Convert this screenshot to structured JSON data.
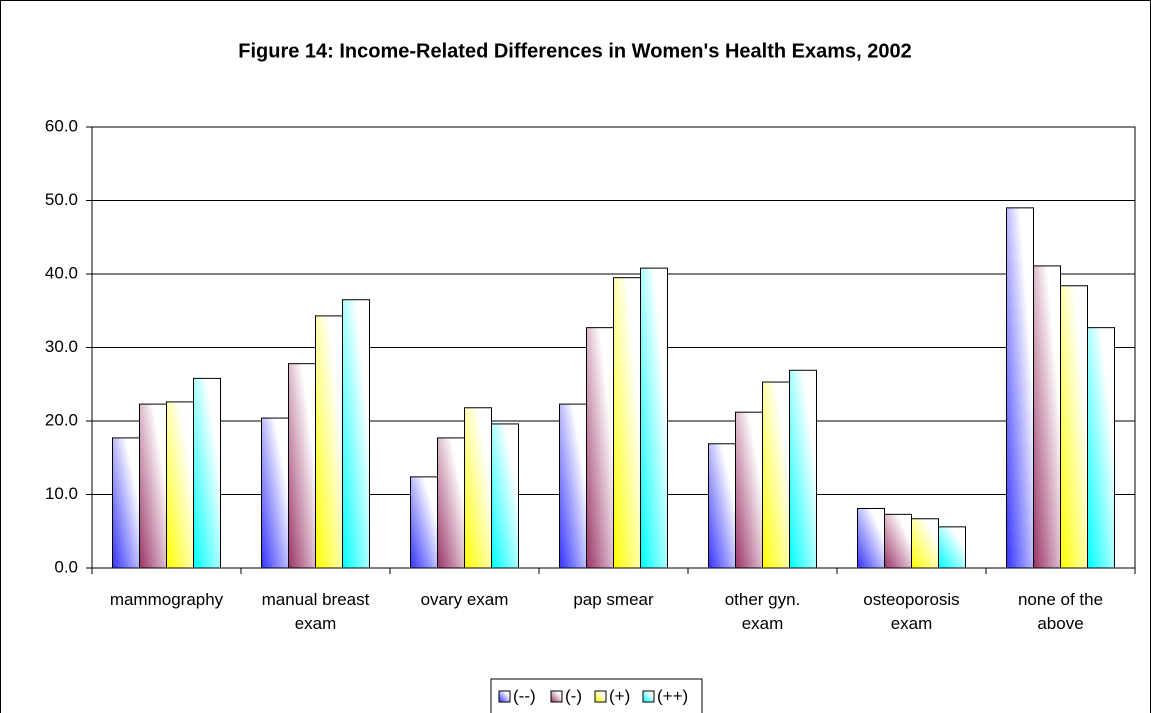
{
  "chart_data": {
    "type": "bar",
    "title": "Figure 14: Income-Related Differences in Women's Health Exams, 2002",
    "categories": [
      "mammography",
      "manual breast exam",
      "ovary exam",
      "pap smear",
      "other gyn. exam",
      "osteoporosis exam",
      "none of the above"
    ],
    "series": [
      {
        "name": "(--)",
        "color": "#3333ff",
        "values": [
          17.7,
          20.4,
          12.4,
          22.3,
          16.9,
          8.1,
          49.0
        ]
      },
      {
        "name": "(-)",
        "color": "#993366",
        "values": [
          22.3,
          27.8,
          17.7,
          32.7,
          21.2,
          7.3,
          41.1
        ]
      },
      {
        "name": "(+)",
        "color": "#ffff00",
        "values": [
          22.6,
          34.3,
          21.8,
          39.5,
          25.3,
          6.7,
          38.4
        ]
      },
      {
        "name": "(++)",
        "color": "#00ffff",
        "values": [
          25.8,
          36.5,
          19.6,
          40.8,
          26.9,
          5.6,
          32.7
        ]
      }
    ],
    "ylim": [
      0,
      60
    ],
    "yticks": [
      {
        "value": 0,
        "label": "0.0"
      },
      {
        "value": 10,
        "label": "10.0"
      },
      {
        "value": 20,
        "label": "20.0"
      },
      {
        "value": 30,
        "label": "30.0"
      },
      {
        "value": 40,
        "label": "40.0"
      },
      {
        "value": 50,
        "label": "50.0"
      },
      {
        "value": 60,
        "label": "60.0"
      }
    ],
    "grid": true,
    "legend": "bottom"
  }
}
